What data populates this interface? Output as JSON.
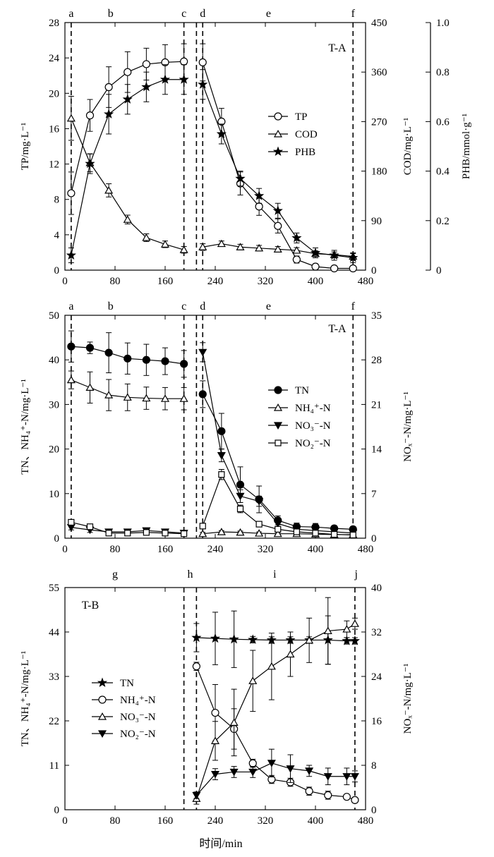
{
  "colors": {
    "ink": "#000000",
    "background": "#ffffff"
  },
  "shared": {
    "xlabel": "时间/min"
  },
  "chart_data": [
    {
      "type": "line",
      "panel_label": "T-A",
      "xlim": [
        0,
        480
      ],
      "xticks": [
        0,
        80,
        160,
        240,
        320,
        400,
        480
      ],
      "ylabel": "TP/mg·L⁻¹",
      "ylim": [
        0,
        28
      ],
      "yticks": [
        0,
        4,
        8,
        12,
        16,
        20,
        24,
        28
      ],
      "y2label": "COD/mg·L⁻¹",
      "y2lim": [
        0,
        450
      ],
      "y2ticks": [
        0,
        90,
        180,
        270,
        360,
        450
      ],
      "y3label": "PHB/mmol·g⁻¹",
      "y3lim": [
        0,
        1.0
      ],
      "y3ticks": [
        "0",
        "0.2",
        "0.4",
        "0.6",
        "0.8",
        "1.0"
      ],
      "phases": [
        {
          "label": "a",
          "x": 10
        },
        {
          "label": "b",
          "x": 73
        },
        {
          "label": "c",
          "x": 190
        },
        {
          "label": "d",
          "x": 220
        },
        {
          "label": "e",
          "x": 325
        },
        {
          "label": "f",
          "x": 460
        }
      ],
      "phase_lines": [
        10,
        190,
        210,
        220,
        460
      ],
      "legend": {
        "position": "right-middle"
      },
      "series": [
        {
          "name": "TP",
          "axis": "left",
          "marker": "circle-open",
          "x": [
            10,
            40,
            70,
            100,
            130,
            160,
            190,
            220,
            250,
            280,
            310,
            340,
            370,
            400,
            430,
            460
          ],
          "y": [
            8.7,
            17.5,
            20.7,
            22.4,
            23.3,
            23.5,
            23.6,
            23.5,
            16.8,
            9.8,
            7.2,
            5.0,
            1.2,
            0.4,
            0.2,
            0.2
          ],
          "err": [
            2.4,
            1.8,
            2.3,
            2.3,
            1.8,
            2.0,
            2.0,
            2.1,
            1.5,
            1.3,
            1.0,
            0.8,
            0.4,
            0.3,
            0.2,
            0.2
          ]
        },
        {
          "name": "COD",
          "axis": "right",
          "marker": "triangle-open",
          "x": [
            10,
            40,
            70,
            100,
            130,
            160,
            190,
            220,
            250,
            280,
            310,
            340,
            370,
            400,
            430,
            460
          ],
          "y": [
            276,
            195,
            145,
            92,
            59,
            47,
            37,
            42,
            48,
            42,
            40,
            38,
            36,
            30,
            28,
            25
          ],
          "err": [
            40,
            16,
            12,
            8,
            7,
            6,
            6,
            6,
            5,
            5,
            5,
            5,
            5,
            5,
            5,
            5
          ]
        },
        {
          "name": "PHB",
          "axis": "right2",
          "marker": "star-filled",
          "x": [
            10,
            40,
            70,
            100,
            130,
            160,
            190,
            220,
            250,
            280,
            310,
            340,
            370,
            400,
            430,
            460
          ],
          "y": [
            0.06,
            0.43,
            0.63,
            0.69,
            0.74,
            0.77,
            0.77,
            0.75,
            0.55,
            0.37,
            0.3,
            0.24,
            0.13,
            0.07,
            0.06,
            0.05
          ],
          "err": [
            0.03,
            0.04,
            0.08,
            0.06,
            0.06,
            0.06,
            0.06,
            0.06,
            0.04,
            0.03,
            0.03,
            0.03,
            0.02,
            0.02,
            0.02,
            0.02
          ]
        }
      ]
    },
    {
      "type": "line",
      "panel_label": "T-A",
      "xlim": [
        0,
        480
      ],
      "xticks": [
        0,
        80,
        160,
        240,
        320,
        400,
        480
      ],
      "ylabel": "TN、NH₄⁺-N/mg·L⁻¹",
      "ylim": [
        0,
        50
      ],
      "yticks": [
        0,
        10,
        20,
        30,
        40,
        50
      ],
      "y2label": "NOₓ⁻-N/mg·L⁻¹",
      "y2lim": [
        0,
        35
      ],
      "y2ticks": [
        0,
        7,
        14,
        21,
        28,
        35
      ],
      "phases": [
        {
          "label": "a",
          "x": 10
        },
        {
          "label": "b",
          "x": 73
        },
        {
          "label": "c",
          "x": 190
        },
        {
          "label": "d",
          "x": 220
        },
        {
          "label": "e",
          "x": 325
        },
        {
          "label": "f",
          "x": 460
        }
      ],
      "phase_lines": [
        10,
        190,
        210,
        220,
        460
      ],
      "legend": {
        "position": "right-middle"
      },
      "series": [
        {
          "name": "TN",
          "axis": "left",
          "marker": "circle-filled",
          "x": [
            10,
            40,
            70,
            100,
            130,
            160,
            190,
            220,
            250,
            280,
            310,
            340,
            370,
            400,
            430,
            460
          ],
          "y": [
            43.0,
            42.7,
            41.6,
            40.3,
            40.0,
            39.7,
            39.1,
            32.3,
            24.0,
            12.0,
            8.7,
            4.0,
            2.6,
            2.5,
            2.2,
            2.0
          ],
          "err": [
            3.5,
            1.3,
            4.5,
            3.5,
            3.5,
            3.0,
            3.0,
            3.0,
            4.0,
            4.0,
            3.0,
            1.0,
            0.8,
            0.8,
            0.6,
            0.6
          ]
        },
        {
          "name": "NH₄⁺-N",
          "axis": "left",
          "marker": "triangle-open",
          "x": [
            10,
            40,
            70,
            100,
            130,
            160,
            190,
            220,
            250,
            280,
            310,
            340,
            370,
            400,
            430,
            460
          ],
          "y": [
            35.5,
            33.8,
            32.1,
            31.6,
            31.4,
            31.3,
            31.3,
            1.0,
            1.4,
            1.3,
            1.1,
            1.0,
            1.0,
            0.9,
            0.8,
            0.8
          ],
          "err": [
            2.0,
            3.5,
            3.5,
            3.0,
            2.5,
            2.5,
            2.5,
            0.3,
            0.3,
            0.3,
            0.3,
            0.3,
            0.3,
            0.3,
            0.3,
            0.3
          ]
        },
        {
          "name": "NO₃⁻-N",
          "axis": "right",
          "marker": "triangle-down-filled",
          "x": [
            10,
            40,
            70,
            100,
            130,
            160,
            190,
            220,
            250,
            280,
            310,
            340,
            370,
            400,
            430,
            460
          ],
          "y": [
            1.7,
            1.3,
            1.0,
            1.0,
            1.2,
            1.0,
            0.8,
            29.2,
            13.0,
            6.6,
            5.8,
            2.3,
            1.4,
            1.2,
            1.0,
            0.8
          ],
          "err": [
            0.4,
            0.4,
            0.3,
            0.3,
            0.3,
            0.3,
            0.3,
            1.5,
            1.0,
            1.0,
            0.8,
            0.6,
            0.4,
            0.4,
            0.4,
            0.3
          ]
        },
        {
          "name": "NO₂⁻-N",
          "axis": "right",
          "marker": "square-open",
          "x": [
            10,
            40,
            70,
            100,
            130,
            160,
            190,
            220,
            250,
            280,
            310,
            340,
            370,
            400,
            430,
            460
          ],
          "y": [
            2.5,
            1.8,
            0.8,
            0.8,
            0.9,
            0.8,
            0.7,
            1.9,
            10.0,
            4.6,
            2.2,
            1.4,
            1.0,
            0.8,
            0.6,
            0.5
          ],
          "err": [
            0.3,
            0.3,
            0.2,
            0.2,
            0.2,
            0.2,
            0.2,
            0.3,
            0.8,
            0.6,
            0.4,
            0.3,
            0.3,
            0.2,
            0.2,
            0.2
          ]
        }
      ]
    },
    {
      "type": "line",
      "panel_label": "T-B",
      "xlim": [
        0,
        480
      ],
      "xticks": [
        0,
        80,
        160,
        240,
        320,
        400,
        480
      ],
      "xlabel": "时间/min",
      "ylabel": "TN、NH₄⁺-N/mg·L⁻¹",
      "ylim": [
        0,
        55
      ],
      "yticks": [
        0,
        11,
        22,
        33,
        44,
        55
      ],
      "y2label": "NOₓ⁻-N/mg·L⁻¹",
      "y2lim": [
        0,
        40
      ],
      "y2ticks": [
        0,
        8,
        16,
        24,
        32,
        40
      ],
      "phases": [
        {
          "label": "g",
          "x": 80
        },
        {
          "label": "h",
          "x": 200
        },
        {
          "label": "i",
          "x": 335
        },
        {
          "label": "j",
          "x": 465
        }
      ],
      "phase_lines": [
        190,
        210,
        463
      ],
      "legend": {
        "position": "left-middle"
      },
      "series": [
        {
          "name": "TN",
          "axis": "left",
          "marker": "star-filled",
          "x": [
            210,
            240,
            270,
            300,
            330,
            360,
            390,
            420,
            450,
            463
          ],
          "y": [
            42.6,
            42.4,
            42.2,
            42.1,
            42.0,
            42.0,
            42.0,
            42.0,
            41.8,
            41.8
          ],
          "err": [
            3.5,
            6.5,
            7.0,
            0.8,
            0.8,
            0.8,
            0.8,
            6.0,
            0.8,
            0.8
          ]
        },
        {
          "name": "NH₄⁺-N",
          "axis": "left",
          "marker": "circle-open",
          "x": [
            210,
            240,
            270,
            300,
            330,
            360,
            390,
            420,
            450,
            463
          ],
          "y": [
            35.5,
            24.0,
            20.0,
            11.5,
            7.5,
            6.8,
            4.6,
            3.6,
            3.2,
            2.4
          ],
          "err": [
            1.0,
            7.0,
            5.0,
            1.0,
            1.0,
            1.0,
            1.0,
            1.0,
            0.5,
            0.5
          ]
        },
        {
          "name": "NO₃⁻-N",
          "axis": "right",
          "marker": "triangle-open",
          "x": [
            210,
            240,
            270,
            300,
            330,
            360,
            390,
            420,
            450,
            463
          ],
          "y": [
            2.0,
            12.4,
            15.7,
            23.2,
            25.8,
            28.0,
            30.5,
            32.2,
            32.5,
            33.5
          ],
          "err": [
            1.0,
            3.5,
            6.0,
            5.5,
            6.0,
            4.0,
            4.0,
            6.0,
            1.5,
            1.0
          ]
        },
        {
          "name": "NO₂⁻-N",
          "axis": "right",
          "marker": "triangle-down-filled",
          "x": [
            210,
            240,
            270,
            300,
            330,
            360,
            390,
            420,
            450,
            463
          ],
          "y": [
            2.6,
            6.4,
            6.8,
            6.8,
            8.4,
            7.4,
            7.0,
            6.0,
            6.0,
            6.0
          ],
          "err": [
            0.6,
            1.0,
            1.0,
            1.0,
            2.5,
            2.5,
            1.0,
            1.5,
            1.5,
            1.0
          ]
        }
      ]
    }
  ]
}
